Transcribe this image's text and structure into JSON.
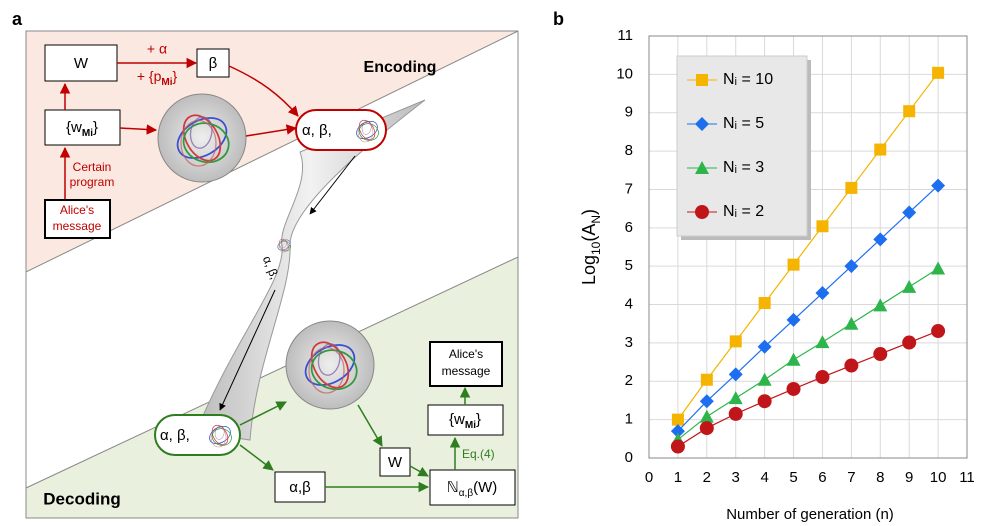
{
  "panel_a_label": "a",
  "panel_b_label": "b",
  "diagram": {
    "enc_w": "W",
    "plus_alpha": "+ α",
    "plus_p": [
      "+ {p",
      "Mi",
      "}"
    ],
    "enc_beta": "β",
    "encoding": "Encoding",
    "enc_wm": [
      "{w",
      "Mi",
      "}"
    ],
    "certain_program": [
      "Certain",
      "program"
    ],
    "enc_message": [
      "Alice's",
      "message"
    ],
    "enc_pill": "α, β,",
    "mid_text": "α, β,",
    "dec_pill": "α, β,",
    "dec_message": [
      "Alice's",
      "message"
    ],
    "dec_wm": [
      "{w",
      "Mi",
      "}"
    ],
    "eq4": "Eq.(4)",
    "dec_w": "W",
    "dec_ab": "α,β",
    "dec_n": [
      "ℕ",
      "α,β",
      "(W)"
    ],
    "decoding": "Decoding"
  },
  "chart_data": {
    "type": "line",
    "x": [
      1,
      2,
      3,
      4,
      5,
      6,
      7,
      8,
      9,
      10
    ],
    "series": [
      {
        "name": "Nᵢ = 10",
        "color": "#f5b400",
        "marker": "square",
        "values": [
          1.0,
          2.04,
          3.04,
          4.04,
          5.04,
          6.04,
          7.04,
          8.04,
          9.04,
          10.04
        ]
      },
      {
        "name": "Nᵢ = 5",
        "color": "#1e6ff0",
        "marker": "diamond",
        "values": [
          0.7,
          1.48,
          2.18,
          2.9,
          3.6,
          4.3,
          5.0,
          5.7,
          6.4,
          7.1
        ]
      },
      {
        "name": "Nᵢ = 3",
        "color": "#2db54b",
        "marker": "triangle",
        "values": [
          0.48,
          1.08,
          1.56,
          2.04,
          2.56,
          3.02,
          3.5,
          3.98,
          4.46,
          4.94
        ]
      },
      {
        "name": "Nᵢ = 2",
        "color": "#c0161a",
        "marker": "circle",
        "values": [
          0.3,
          0.78,
          1.15,
          1.48,
          1.8,
          2.11,
          2.41,
          2.71,
          3.01,
          3.31
        ]
      }
    ],
    "xlim": [
      0,
      11
    ],
    "xticks": [
      0,
      1,
      2,
      3,
      4,
      5,
      6,
      7,
      8,
      9,
      10,
      11
    ],
    "ylim": [
      0,
      11
    ],
    "yticks": [
      0,
      1,
      2,
      3,
      4,
      5,
      6,
      7,
      8,
      9,
      10,
      11
    ],
    "xlabel": "Number of generation (n)",
    "ylabel": [
      "Log",
      "10",
      "(A",
      "N",
      ")"
    ],
    "grid": true,
    "legend": "upper left"
  }
}
